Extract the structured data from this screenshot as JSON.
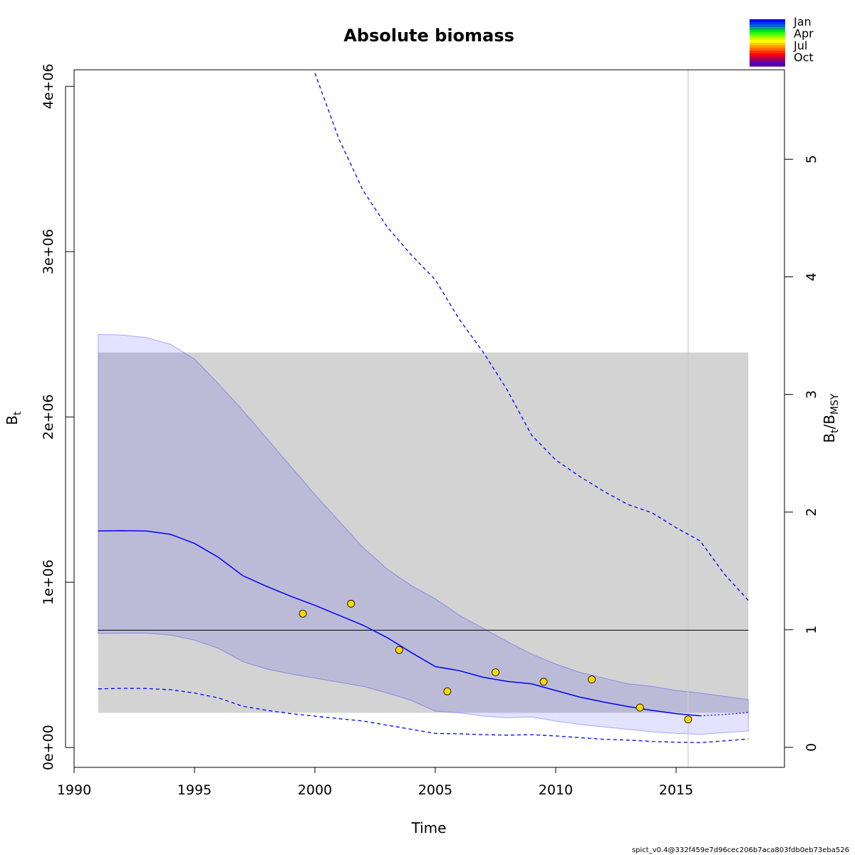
{
  "chart_data": {
    "type": "line",
    "title": "Absolute biomass",
    "xlabel": "Time",
    "ylabel_main": "B",
    "ylabel_sub": "t",
    "y2label_main": "B",
    "y2label_sub1": "t",
    "y2label_sep": "/B",
    "y2label_sub2": "MSY",
    "xlim": [
      1990,
      2019.5
    ],
    "ylim": [
      -120000,
      4100000
    ],
    "y2lim": [
      -0.17,
      5.76
    ],
    "x_ticks": [
      1990,
      1995,
      2000,
      2005,
      2010,
      2015
    ],
    "x_tick_labels": [
      "1990",
      "1995",
      "2000",
      "2005",
      "2010",
      "2015"
    ],
    "y_ticks": [
      0,
      1000000,
      2000000,
      3000000,
      4000000
    ],
    "y_tick_labels": [
      "0e+00",
      "1e+06",
      "2e+06",
      "3e+06",
      "4e+06"
    ],
    "y2_ticks": [
      0,
      1,
      2,
      3,
      4,
      5
    ],
    "y2_tick_labels": [
      "0",
      "1",
      "2",
      "3",
      "4",
      "5"
    ],
    "bmsy": 710000,
    "bmsy_ci_band": {
      "x": [
        1991,
        2018
      ],
      "lower": 210000,
      "upper": 2390000
    },
    "vertical_line_x": 2015.5,
    "series": [
      {
        "role": "estimate",
        "x": [
          1991,
          1992,
          1993,
          1994,
          1995,
          1996,
          1997,
          1998,
          1999,
          2000,
          2001,
          2002,
          2003,
          2004,
          2005,
          2006,
          2007,
          2008,
          2009,
          2010,
          2011,
          2012,
          2013,
          2014,
          2015,
          2016
        ],
        "y": [
          1310000,
          1312000,
          1310000,
          1290000,
          1235000,
          1150000,
          1040000,
          975000,
          915000,
          860000,
          800000,
          740000,
          665000,
          575000,
          490000,
          465000,
          425000,
          400000,
          385000,
          345000,
          305000,
          275000,
          248000,
          225000,
          205000,
          192000
        ]
      },
      {
        "role": "forecast",
        "x": [
          2016,
          2017,
          2018
        ],
        "y": [
          192000,
          200000,
          212000
        ]
      },
      {
        "role": "ci_lower",
        "x": [
          1991,
          1992,
          1993,
          1994,
          1995,
          1996,
          1997,
          1998,
          1999,
          2000,
          2001,
          2002,
          2003,
          2004,
          2005,
          2006,
          2007,
          2008,
          2009,
          2010,
          2011,
          2012,
          2013,
          2014,
          2015,
          2016,
          2017,
          2018
        ],
        "y": [
          690000,
          692000,
          692000,
          680000,
          650000,
          600000,
          520000,
          475000,
          445000,
          420000,
          395000,
          370000,
          330000,
          285000,
          220000,
          210000,
          190000,
          180000,
          185000,
          160000,
          140000,
          125000,
          110000,
          95000,
          85000,
          80000,
          90000,
          100000
        ]
      },
      {
        "role": "ci_upper",
        "x": [
          1991,
          1992,
          1993,
          1994,
          1995,
          1996,
          1997,
          1998,
          1999,
          2000,
          2001,
          2002,
          2003,
          2004,
          2005,
          2006,
          2007,
          2008,
          2009,
          2010,
          2011,
          2012,
          2013,
          2014,
          2015,
          2016,
          2017,
          2018
        ],
        "y": [
          2500000,
          2495000,
          2480000,
          2440000,
          2350000,
          2200000,
          2040000,
          1870000,
          1700000,
          1530000,
          1370000,
          1210000,
          1080000,
          980000,
          900000,
          800000,
          720000,
          640000,
          565000,
          505000,
          455000,
          420000,
          385000,
          370000,
          345000,
          330000,
          310000,
          290000
        ]
      },
      {
        "role": "outer_lower",
        "x": [
          1991,
          1992,
          1993,
          1994,
          1995,
          1996,
          1997,
          1998,
          1999,
          2000,
          2001,
          2002,
          2003,
          2004,
          2005,
          2006,
          2007,
          2008,
          2009,
          2010,
          2011,
          2012,
          2013,
          2014,
          2015,
          2016,
          2017,
          2018
        ],
        "y": [
          355000,
          358000,
          357000,
          350000,
          330000,
          300000,
          250000,
          225000,
          205000,
          190000,
          175000,
          160000,
          135000,
          110000,
          85000,
          83000,
          78000,
          75000,
          78000,
          70000,
          60000,
          50000,
          45000,
          37000,
          32000,
          30000,
          40000,
          52000
        ]
      },
      {
        "role": "outer_upper",
        "x": [
          2000,
          2001,
          2002,
          2003,
          2004,
          2005,
          2006,
          2007,
          2008,
          2009,
          2010,
          2011,
          2012,
          2013,
          2014,
          2015,
          2016,
          2017,
          2018
        ],
        "y": [
          4080000,
          3680000,
          3370000,
          3150000,
          2980000,
          2830000,
          2590000,
          2390000,
          2160000,
          1890000,
          1740000,
          1640000,
          1550000,
          1470000,
          1420000,
          1330000,
          1250000,
          1050000,
          890000
        ]
      }
    ],
    "observations": {
      "x": [
        1999.5,
        2001.5,
        2003.5,
        2005.5,
        2007.5,
        2009.5,
        2011.5,
        2013.5,
        2015.5
      ],
      "y": [
        810000,
        870000,
        590000,
        340000,
        455000,
        398000,
        412000,
        242000,
        170000
      ]
    },
    "legend": {
      "labels": [
        "Jan",
        "Apr",
        "Jul",
        "Oct"
      ],
      "placement": "top-right",
      "colors": [
        "#0000ff",
        "#0033ff",
        "#0066cc",
        "#00aa66",
        "#00dd33",
        "#33ff00",
        "#99ff00",
        "#ccff00",
        "#ffff00",
        "#ffcc00",
        "#ff9900",
        "#ff6600",
        "#ff3300",
        "#ff0000",
        "#cc0033",
        "#990066",
        "#6600aa",
        "#5500aa"
      ]
    },
    "colors": {
      "estimate": "#0000ff",
      "ci_fill": "#0000ff",
      "bmsy_band": "#d3d3d3",
      "observation": "#ffd700",
      "vertical_line": "#cccccc"
    }
  },
  "footer": "spict_v0.4@332f459e7d96cec206b7aca803fdb0eb73eba526"
}
